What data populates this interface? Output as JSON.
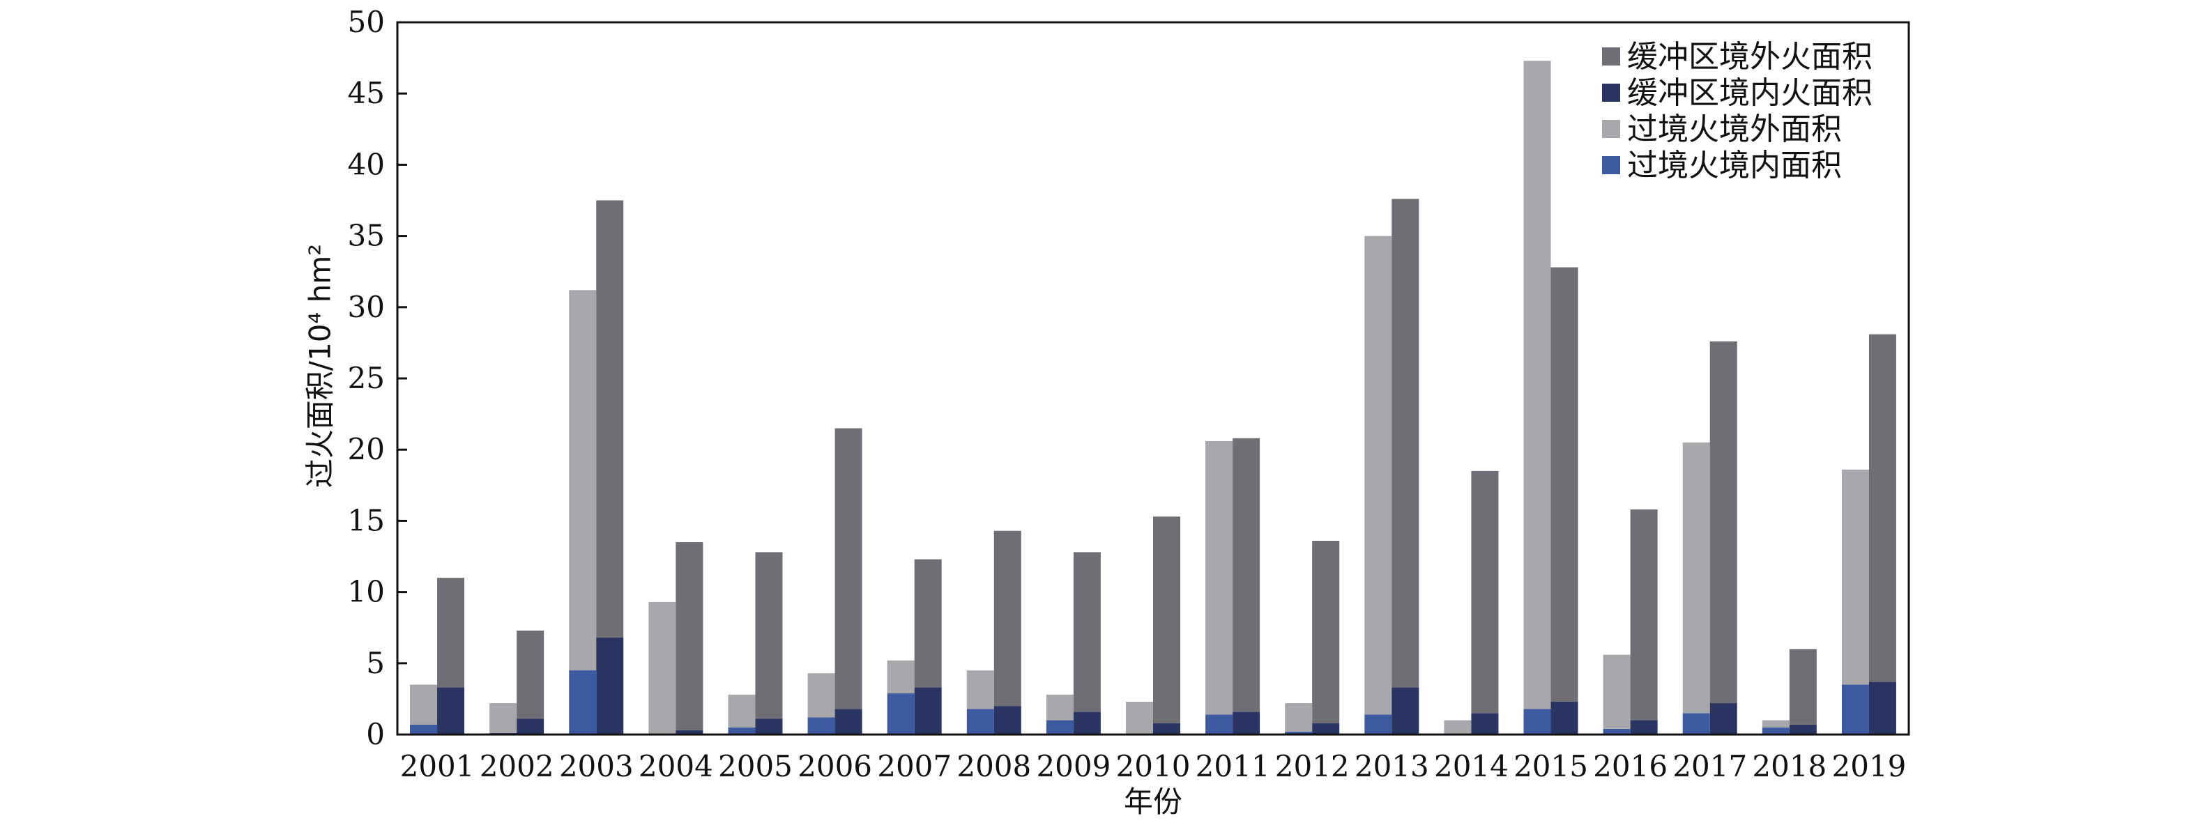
{
  "chart_data": {
    "type": "bar",
    "xlabel": "年份",
    "ylabel": "过火面积/10⁴ hm²",
    "ylim": [
      0,
      50
    ],
    "yticks": [
      0,
      5,
      10,
      15,
      20,
      25,
      30,
      35,
      40,
      45,
      50
    ],
    "legend_position": "top-right",
    "legend": [
      "缓冲区境外火面积",
      "缓冲区境内火面积",
      "过境火境外面积",
      "过境火境内面积"
    ],
    "colors": {
      "buffer_outside": "#6e6e74",
      "buffer_inside": "#2b3563",
      "transit_outside": "#a8a7ab",
      "transit_inside": "#3d5aa0"
    },
    "categories": [
      "2001",
      "2002",
      "2003",
      "2004",
      "2005",
      "2006",
      "2007",
      "2008",
      "2009",
      "2010",
      "2011",
      "2012",
      "2013",
      "2014",
      "2015",
      "2016",
      "2017",
      "2018",
      "2019"
    ],
    "transit_fire": {
      "inside": [
        0.7,
        0.1,
        4.5,
        0.0,
        0.5,
        1.2,
        2.9,
        1.8,
        1.0,
        0.0,
        1.4,
        0.2,
        1.4,
        0.0,
        1.8,
        0.4,
        1.5,
        0.5,
        3.5
      ],
      "total": [
        3.5,
        2.2,
        31.2,
        9.3,
        2.8,
        4.3,
        5.2,
        4.5,
        2.8,
        2.3,
        20.6,
        2.2,
        35.0,
        1.0,
        47.3,
        5.6,
        20.5,
        1.0,
        18.6
      ]
    },
    "buffer_fire": {
      "inside": [
        3.3,
        1.1,
        6.8,
        0.3,
        1.1,
        1.8,
        3.3,
        2.0,
        1.6,
        0.8,
        1.6,
        0.8,
        3.3,
        1.5,
        2.3,
        1.0,
        2.2,
        0.7,
        3.7
      ],
      "total": [
        11.0,
        7.3,
        37.5,
        13.5,
        12.8,
        21.5,
        12.3,
        14.3,
        12.8,
        15.3,
        20.8,
        13.6,
        37.6,
        18.5,
        32.8,
        15.8,
        27.6,
        6.0,
        28.1
      ]
    }
  }
}
